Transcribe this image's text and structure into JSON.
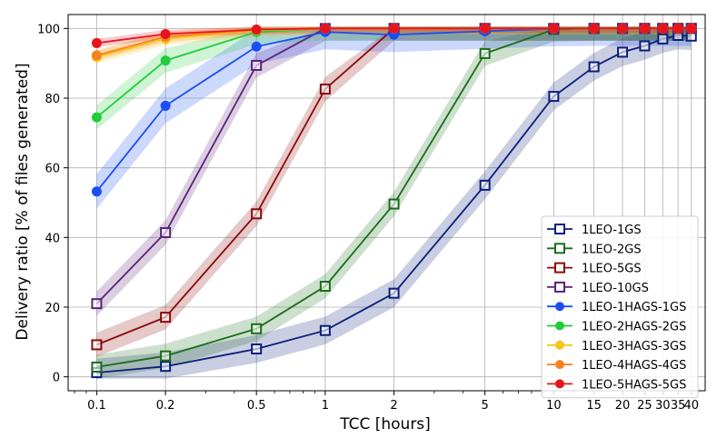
{
  "chart_data": {
    "type": "line",
    "xscale": "log",
    "xlabel": "TCC [hours]",
    "ylabel": "Delivery ratio [% of files generated]",
    "xlim": [
      0.075,
      46
    ],
    "ylim": [
      -4,
      104
    ],
    "xticks": [
      0.1,
      0.2,
      0.5,
      1,
      2,
      5,
      10,
      15,
      20,
      25,
      30,
      35,
      40
    ],
    "xtick_labels": [
      "0.1",
      "0.2",
      "0.5",
      "1",
      "2",
      "5",
      "10",
      "15",
      "20",
      "25",
      "30",
      "35",
      "40"
    ],
    "yticks": [
      0,
      20,
      40,
      60,
      80,
      100
    ],
    "ytick_labels": [
      "0",
      "20",
      "40",
      "60",
      "80",
      "100"
    ],
    "grid": true,
    "legend_position": "lower-right",
    "series": [
      {
        "name": "1LEO-1GS",
        "color": "#0a1f7a",
        "marker": "square-open",
        "band": 4,
        "x": [
          0.1,
          0.2,
          0.5,
          1,
          2,
          5,
          10,
          15,
          20,
          25,
          30,
          35,
          40
        ],
        "values": [
          1.2,
          3.0,
          8.0,
          13.3,
          24.0,
          55.0,
          80.5,
          89.0,
          93.2,
          95.0,
          97.0,
          98.0,
          97.8
        ]
      },
      {
        "name": "1LEO-2GS",
        "color": "#1a6e1a",
        "marker": "square-open",
        "band": 3.5,
        "x": [
          0.1,
          0.2,
          0.5,
          1,
          2,
          5,
          10,
          15,
          20,
          25,
          30,
          35,
          40
        ],
        "values": [
          2.8,
          6.0,
          13.8,
          26.0,
          49.6,
          92.8,
          99.7,
          100,
          100,
          100,
          100,
          100,
          100
        ]
      },
      {
        "name": "1LEO-5GS",
        "color": "#8b0a0a",
        "marker": "square-open",
        "band": 3.5,
        "x": [
          0.1,
          0.2,
          0.5,
          1,
          2,
          5,
          10,
          15,
          20,
          25,
          30,
          35,
          40
        ],
        "values": [
          9.2,
          17.1,
          46.8,
          82.6,
          100,
          100,
          100,
          100,
          100,
          100,
          100,
          100,
          100
        ]
      },
      {
        "name": "1LEO-10GS",
        "color": "#5b2278",
        "marker": "square-open",
        "band": 3.5,
        "x": [
          0.1,
          0.2,
          0.5,
          1,
          2,
          5,
          10,
          15,
          20,
          25,
          30,
          35,
          40
        ],
        "values": [
          21.0,
          41.4,
          89.4,
          100,
          100,
          100,
          100,
          100,
          100,
          100,
          100,
          100,
          100
        ]
      },
      {
        "name": "1LEO-1HAGS-1GS",
        "color": "#1a4ef5",
        "marker": "circle",
        "band": 5,
        "x": [
          0.1,
          0.2,
          0.5,
          1,
          2,
          5,
          10,
          15,
          20,
          25,
          30,
          35,
          40
        ],
        "values": [
          53.2,
          77.8,
          94.8,
          99.0,
          98.2,
          99.2,
          99.9,
          100,
          100,
          100,
          100,
          100,
          100
        ]
      },
      {
        "name": "1LEO-2HAGS-2GS",
        "color": "#22cc3a",
        "marker": "circle",
        "band": 3.5,
        "x": [
          0.1,
          0.2,
          0.5,
          1,
          2,
          5,
          10,
          15,
          20,
          25,
          30,
          35,
          40
        ],
        "values": [
          74.5,
          90.8,
          99.0,
          100,
          100,
          100,
          100,
          100,
          100,
          100,
          100,
          100,
          100
        ]
      },
      {
        "name": "1LEO-3HAGS-3GS",
        "color": "#f5c518",
        "marker": "circle",
        "band": 1.8,
        "x": [
          0.1,
          0.2,
          0.5,
          1,
          2,
          5,
          10,
          15,
          20,
          25,
          30,
          35,
          40
        ],
        "values": [
          91.8,
          97.0,
          99.5,
          100,
          100,
          100,
          100,
          100,
          100,
          100,
          100,
          100,
          100
        ]
      },
      {
        "name": "1LEO-4HAGS-4GS",
        "color": "#f5821f",
        "marker": "circle",
        "band": 1.5,
        "x": [
          0.1,
          0.2,
          0.5,
          1,
          2,
          5,
          10,
          15,
          20,
          25,
          30,
          35,
          40
        ],
        "values": [
          92.3,
          97.6,
          99.6,
          100,
          100,
          100,
          100,
          100,
          100,
          100,
          100,
          100,
          100
        ]
      },
      {
        "name": "1LEO-5HAGS-5GS",
        "color": "#e8141c",
        "marker": "circle",
        "band": 1.2,
        "x": [
          0.1,
          0.2,
          0.5,
          1,
          2,
          5,
          10,
          15,
          20,
          25,
          30,
          35,
          40
        ],
        "values": [
          95.8,
          98.4,
          99.7,
          100,
          100,
          100,
          100,
          100,
          100,
          100,
          100,
          100,
          100
        ]
      }
    ]
  }
}
